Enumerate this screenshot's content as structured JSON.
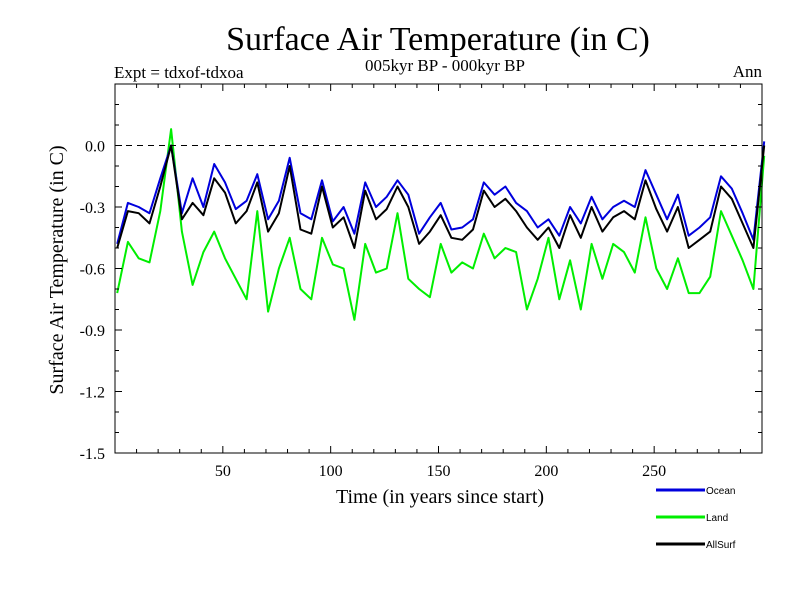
{
  "chart_data": {
    "type": "line",
    "title": "Surface Air Temperature (in C)",
    "subtitle": "005kyr BP - 000kyr BP",
    "left_annotation": "Expt = tdxof-tdxoa",
    "right_annotation": "Ann",
    "xlabel": "Time (in years since start)",
    "ylabel": "Surface Air Temperature (in C)",
    "xlim": [
      0,
      300
    ],
    "ylim": [
      -1.5,
      0.3
    ],
    "x_ticks": [
      50,
      100,
      150,
      200,
      250
    ],
    "x_tick_labels": [
      "50",
      "100",
      "150",
      "200",
      "250"
    ],
    "y_ticks": [
      -1.5,
      -1.2,
      -0.9,
      -0.6,
      -0.3,
      0.0
    ],
    "y_tick_labels": [
      "-1.5",
      "-1.2",
      "-0.9",
      "-0.6",
      "-0.3",
      "0.0"
    ],
    "reference_line": 0.0,
    "grid": false,
    "legend_position": "bottom-right, outside plot",
    "x_start": 1,
    "x_step": 5,
    "series": [
      {
        "name": "Ocean",
        "color": "#0000dd",
        "values": [
          -0.48,
          -0.28,
          -0.3,
          -0.33,
          -0.16,
          0.0,
          -0.33,
          -0.16,
          -0.3,
          -0.09,
          -0.18,
          -0.31,
          -0.27,
          -0.14,
          -0.36,
          -0.27,
          -0.06,
          -0.33,
          -0.36,
          -0.17,
          -0.37,
          -0.3,
          -0.43,
          -0.18,
          -0.3,
          -0.25,
          -0.17,
          -0.24,
          -0.43,
          -0.35,
          -0.28,
          -0.41,
          -0.4,
          -0.36,
          -0.18,
          -0.24,
          -0.2,
          -0.28,
          -0.32,
          -0.4,
          -0.36,
          -0.44,
          -0.3,
          -0.38,
          -0.25,
          -0.36,
          -0.3,
          -0.27,
          -0.3,
          -0.12,
          -0.24,
          -0.36,
          -0.24,
          -0.44,
          -0.4,
          -0.35,
          -0.15,
          -0.21,
          -0.33,
          -0.46,
          0.02
        ]
      },
      {
        "name": "Land",
        "color": "#00ee00",
        "values": [
          -0.72,
          -0.47,
          -0.55,
          -0.57,
          -0.32,
          0.08,
          -0.42,
          -0.68,
          -0.52,
          -0.42,
          -0.55,
          -0.65,
          -0.75,
          -0.32,
          -0.81,
          -0.6,
          -0.45,
          -0.7,
          -0.75,
          -0.45,
          -0.58,
          -0.6,
          -0.85,
          -0.48,
          -0.62,
          -0.6,
          -0.33,
          -0.65,
          -0.7,
          -0.74,
          -0.48,
          -0.62,
          -0.57,
          -0.6,
          -0.43,
          -0.55,
          -0.5,
          -0.52,
          -0.8,
          -0.65,
          -0.45,
          -0.75,
          -0.56,
          -0.8,
          -0.48,
          -0.65,
          -0.48,
          -0.52,
          -0.62,
          -0.35,
          -0.6,
          -0.7,
          -0.55,
          -0.72,
          -0.72,
          -0.64,
          -0.32,
          -0.44,
          -0.56,
          -0.7,
          -0.05
        ]
      },
      {
        "name": "AllSurf",
        "color": "#000000",
        "values": [
          -0.5,
          -0.32,
          -0.33,
          -0.38,
          -0.2,
          0.0,
          -0.36,
          -0.28,
          -0.34,
          -0.16,
          -0.23,
          -0.38,
          -0.32,
          -0.18,
          -0.42,
          -0.33,
          -0.1,
          -0.41,
          -0.43,
          -0.2,
          -0.4,
          -0.35,
          -0.5,
          -0.22,
          -0.36,
          -0.31,
          -0.2,
          -0.3,
          -0.48,
          -0.42,
          -0.34,
          -0.45,
          -0.46,
          -0.41,
          -0.22,
          -0.3,
          -0.26,
          -0.32,
          -0.4,
          -0.46,
          -0.4,
          -0.5,
          -0.34,
          -0.45,
          -0.3,
          -0.42,
          -0.35,
          -0.32,
          -0.36,
          -0.17,
          -0.31,
          -0.42,
          -0.3,
          -0.5,
          -0.46,
          -0.42,
          -0.2,
          -0.26,
          -0.38,
          -0.5,
          0.0
        ]
      }
    ]
  }
}
